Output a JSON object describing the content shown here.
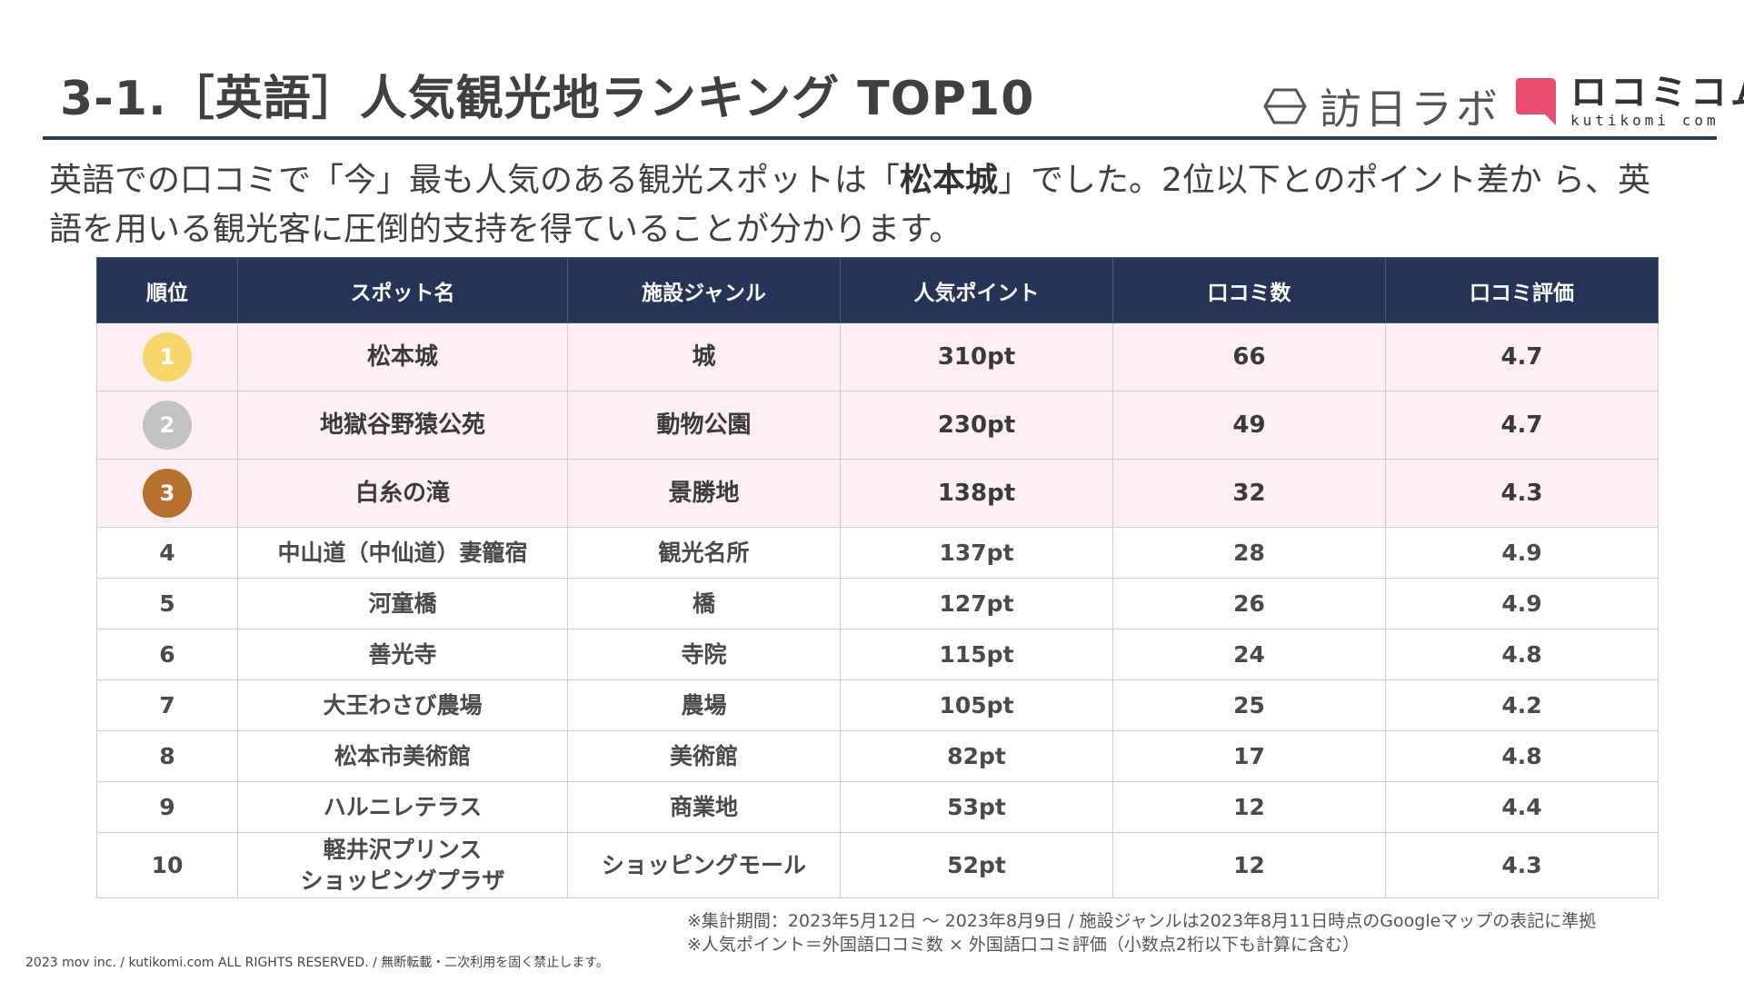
{
  "header": {
    "title": "3-1.［英語］人気観光地ランキング TOP10",
    "logo1_text": "訪日ラボ",
    "logo2_text": "ロコミコム",
    "logo2_sub": "kutikomi com"
  },
  "intro": {
    "part1": "英語での口コミで「今」最も人気のある観光スポットは「",
    "highlight": "松本城",
    "part2": "」でした。2位以下とのポイント差か ら、英語を用いる観光客に圧倒的支持を得ていることが分かります。"
  },
  "table": {
    "columns": [
      "順位",
      "スポット名",
      "施設ジャンル",
      "人気ポイント",
      "口コミ数",
      "口コミ評価"
    ],
    "rows": [
      {
        "rank": "1",
        "spot": "松本城",
        "genre": "城",
        "points": "310pt",
        "reviews": "66",
        "rating": "4.7"
      },
      {
        "rank": "2",
        "spot": "地獄谷野猿公苑",
        "genre": "動物公園",
        "points": "230pt",
        "reviews": "49",
        "rating": "4.7"
      },
      {
        "rank": "3",
        "spot": "白糸の滝",
        "genre": "景勝地",
        "points": "138pt",
        "reviews": "32",
        "rating": "4.3"
      },
      {
        "rank": "4",
        "spot": "中山道（中仙道）妻籠宿",
        "genre": "観光名所",
        "points": "137pt",
        "reviews": "28",
        "rating": "4.9"
      },
      {
        "rank": "5",
        "spot": "河童橋",
        "genre": "橋",
        "points": "127pt",
        "reviews": "26",
        "rating": "4.9"
      },
      {
        "rank": "6",
        "spot": "善光寺",
        "genre": "寺院",
        "points": "115pt",
        "reviews": "24",
        "rating": "4.8"
      },
      {
        "rank": "7",
        "spot": "大王わさび農場",
        "genre": "農場",
        "points": "105pt",
        "reviews": "25",
        "rating": "4.2"
      },
      {
        "rank": "8",
        "spot": "松本市美術館",
        "genre": "美術館",
        "points": "82pt",
        "reviews": "17",
        "rating": "4.8"
      },
      {
        "rank": "9",
        "spot": "ハルニレテラス",
        "genre": "商業地",
        "points": "53pt",
        "reviews": "12",
        "rating": "4.4"
      },
      {
        "rank": "10",
        "spot_line1": "軽井沢プリンス",
        "spot_line2": "ショッピングプラザ",
        "genre": "ショッピングモール",
        "points": "52pt",
        "reviews": "12",
        "rating": "4.3"
      }
    ]
  },
  "medal_colors": {
    "gold": "#f9d66b",
    "silver": "#c2c2c2",
    "bronze": "#b8702f"
  },
  "colors": {
    "header_bg": "#263457",
    "top3_bg": "#fdeff4",
    "brand_pink": "#e84c6e"
  },
  "icons": {
    "logo1": "hexagon-logo-icon",
    "logo2": "speech-bubble-logo-icon"
  },
  "notes": [
    "※集計期間：2023年5月12日 〜 2023年8月9日 / 施設ジャンルは2023年8月11日時点のGoogleマップの表記に準拠",
    "※人気ポイント＝外国語口コミ数 × 外国語口コミ評価（小数点2桁以下も計算に含む）"
  ],
  "copyright": "2023 mov inc. / kutikomi.com ALL RIGHTS RESERVED. / 無断転載・二次利用を固く禁止します。"
}
